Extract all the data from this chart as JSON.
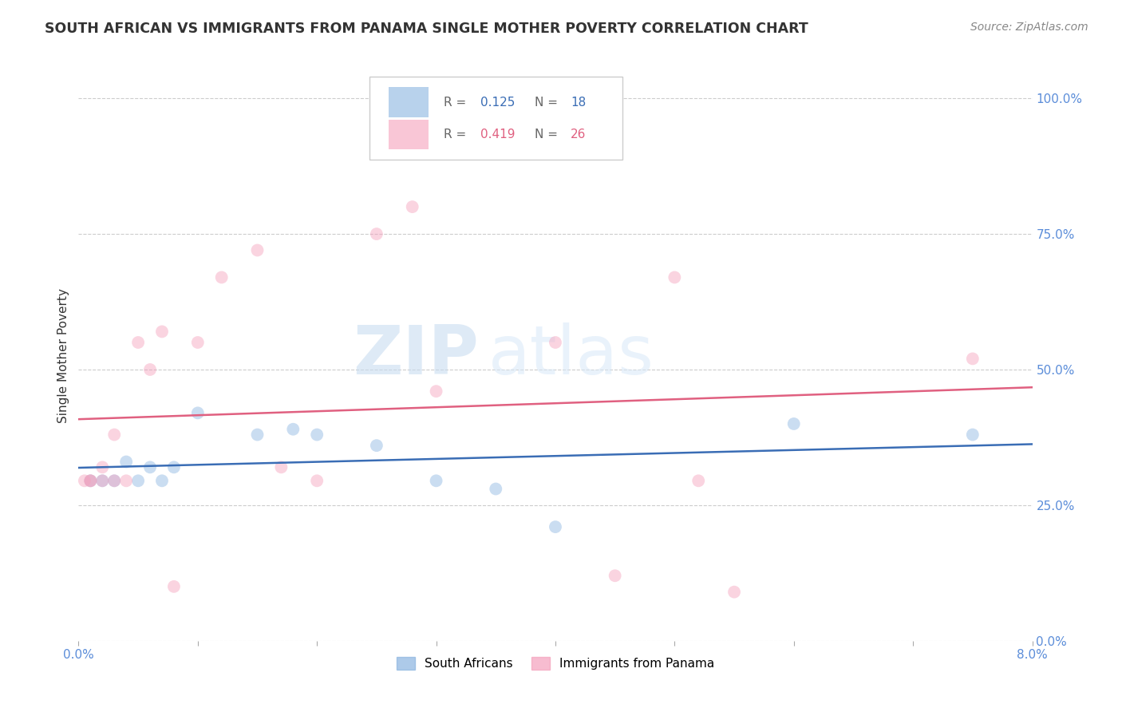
{
  "title": "SOUTH AFRICAN VS IMMIGRANTS FROM PANAMA SINGLE MOTHER POVERTY CORRELATION CHART",
  "source": "Source: ZipAtlas.com",
  "ylabel": "Single Mother Poverty",
  "legend_blue_r": "0.125",
  "legend_blue_n": "18",
  "legend_pink_r": "0.419",
  "legend_pink_n": "26",
  "blue_label": "South Africans",
  "pink_label": "Immigrants from Panama",
  "blue_color": "#8ab4e0",
  "pink_color": "#f5a0bc",
  "blue_line_color": "#3a6db5",
  "pink_line_color": "#e06080",
  "right_yticklabels": [
    "0.0%",
    "25.0%",
    "50.0%",
    "75.0%",
    "100.0%"
  ],
  "right_ytick_vals": [
    0.0,
    0.25,
    0.5,
    0.75,
    1.0
  ],
  "watermark_zip": "ZIP",
  "watermark_atlas": "atlas",
  "blue_x": [
    0.001,
    0.002,
    0.003,
    0.004,
    0.005,
    0.006,
    0.007,
    0.008,
    0.01,
    0.015,
    0.018,
    0.02,
    0.025,
    0.03,
    0.035,
    0.04,
    0.06,
    0.075
  ],
  "blue_y": [
    0.295,
    0.295,
    0.295,
    0.33,
    0.295,
    0.32,
    0.295,
    0.32,
    0.42,
    0.38,
    0.39,
    0.38,
    0.36,
    0.295,
    0.28,
    0.21,
    0.4,
    0.38
  ],
  "pink_x": [
    0.0005,
    0.001,
    0.001,
    0.002,
    0.002,
    0.003,
    0.003,
    0.004,
    0.005,
    0.006,
    0.007,
    0.008,
    0.01,
    0.012,
    0.015,
    0.017,
    0.02,
    0.025,
    0.028,
    0.03,
    0.04,
    0.045,
    0.05,
    0.055,
    0.075,
    0.052
  ],
  "pink_y": [
    0.295,
    0.295,
    0.295,
    0.295,
    0.32,
    0.295,
    0.38,
    0.295,
    0.55,
    0.5,
    0.57,
    0.1,
    0.55,
    0.67,
    0.72,
    0.32,
    0.295,
    0.75,
    0.8,
    0.46,
    0.55,
    0.12,
    0.67,
    0.09,
    0.52,
    0.295
  ],
  "xmin": 0.0,
  "xmax": 0.08,
  "ymin": 0.0,
  "ymax": 1.05,
  "background_color": "#ffffff",
  "grid_color": "#cccccc",
  "title_color": "#333333",
  "source_color": "#888888",
  "axis_tick_color": "#5b8dd9",
  "marker_size": 130,
  "marker_alpha": 0.45,
  "line_width": 1.8
}
